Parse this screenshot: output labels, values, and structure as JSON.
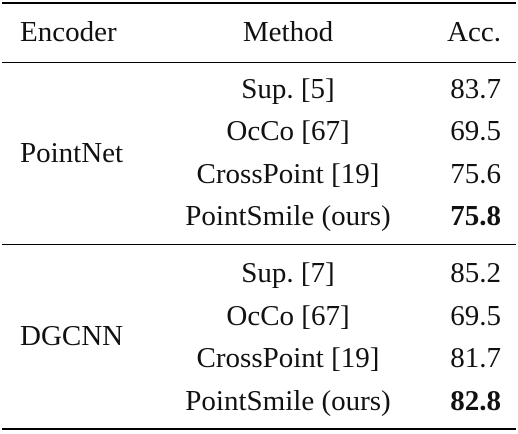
{
  "headers": {
    "encoder": "Encoder",
    "method": "Method",
    "acc": "Acc."
  },
  "groups": [
    {
      "encoder": "PointNet",
      "rows": [
        {
          "method": "Sup. [5]",
          "acc": "83.7",
          "bold": false
        },
        {
          "method": "OcCo [67]",
          "acc": "69.5",
          "bold": false
        },
        {
          "method": "CrossPoint [19]",
          "acc": "75.6",
          "bold": false
        },
        {
          "method": "PointSmile (ours)",
          "acc": "75.8",
          "bold": true
        }
      ]
    },
    {
      "encoder": "DGCNN",
      "rows": [
        {
          "method": "Sup. [7]",
          "acc": "85.2",
          "bold": false
        },
        {
          "method": "OcCo [67]",
          "acc": "69.5",
          "bold": false
        },
        {
          "method": "CrossPoint [19]",
          "acc": "81.7",
          "bold": false
        },
        {
          "method": "PointSmile (ours)",
          "acc": "82.8",
          "bold": true
        }
      ]
    }
  ]
}
